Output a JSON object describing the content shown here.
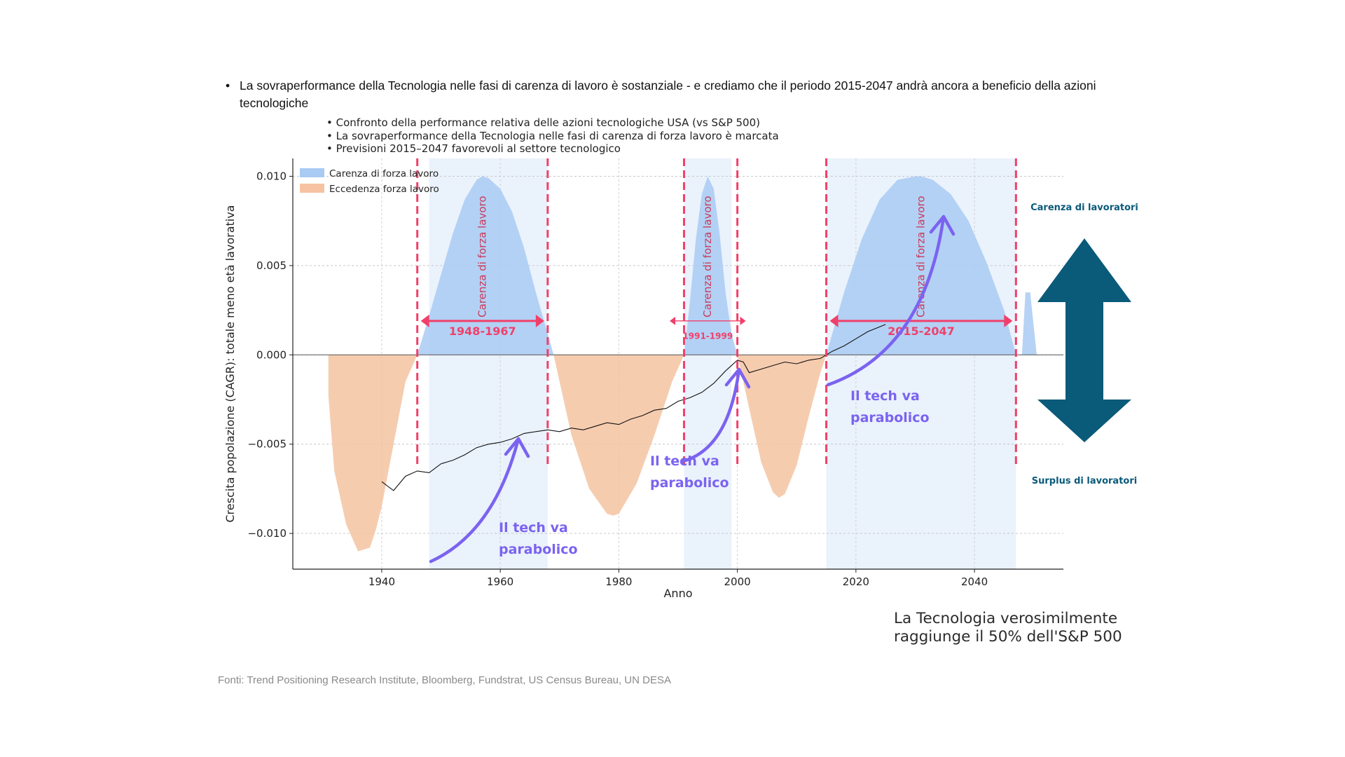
{
  "header": {
    "bullet_text": "La sovraperformance della Tecnologia nelle fasi di carenza di lavoro è sostanziale - e crediamo che il periodo 2015-2047 andrà ancora a beneficio della azioni tecnologiche",
    "sub_bullets": [
      "Confronto della performance relativa delle azioni tecnologiche USA (vs S&P 500)",
      "La sovraperformance della Tecnologia nelle fasi di carenza di forza lavoro è marcata",
      "Previsioni 2015–2047 favorevoli al settore tecnologico"
    ]
  },
  "side": {
    "top_label": "Carenza di lavoratori",
    "bottom_label": "Surplus di lavoratori",
    "arrow_color": "#0a5a7a"
  },
  "takeaway": "La Tecnologia verosimilmente raggiunge il 50% dell'S&P 500",
  "sources": "Fonti: Trend Positioning Research Institute, Bloomberg, Fundstrat, US Census Bureau, UN DESA",
  "colors": {
    "shortage_fill": "#a9cbf3",
    "surplus_fill": "#f5c3a1",
    "band_fill": "#eaf2fc",
    "marker": "#f0406a",
    "annotation_arrow": "#7b63f0",
    "tech_line": "#111111"
  },
  "chart_data": {
    "type": "area",
    "xlabel": "Anno",
    "ylabel": "Crescita popolazione (CAGR): totale meno età lavorativa",
    "xlim": [
      1925,
      2055
    ],
    "ylim": [
      -0.012,
      0.011
    ],
    "x_ticks": [
      1940,
      1960,
      1980,
      2000,
      2020,
      2040
    ],
    "y_ticks": [
      0.01,
      0.005,
      0.0,
      -0.005,
      -0.01
    ],
    "y_tick_labels": [
      "0.010",
      "0.005",
      "0.000",
      "−0.005",
      "−0.010"
    ],
    "grid": true,
    "legend": {
      "placement": "top-left",
      "entries": [
        {
          "label": "Carenza di forza lavoro",
          "color": "#a9cbf3"
        },
        {
          "label": "Eccedenza forza lavoro",
          "color": "#f5c3a1"
        }
      ]
    },
    "series": [
      {
        "name": "Carenza di forza lavoro",
        "kind": "positive-area",
        "x": [
          1946,
          1948,
          1950,
          1952,
          1954,
          1956,
          1957,
          1958,
          1960,
          1962,
          1964,
          1966,
          1968,
          1969
        ],
        "y": [
          0,
          0.0022,
          0.0045,
          0.0068,
          0.0087,
          0.0098,
          0.01,
          0.0099,
          0.0093,
          0.008,
          0.006,
          0.0035,
          0.0012,
          0
        ]
      },
      {
        "name": "",
        "kind": "positive-area",
        "x": [
          1991,
          1992,
          1993,
          1994,
          1995,
          1996,
          1997,
          1998,
          1999,
          2000
        ],
        "y": [
          0,
          0.003,
          0.0065,
          0.009,
          0.01,
          0.0093,
          0.0068,
          0.0035,
          0.0012,
          0
        ]
      },
      {
        "name": "",
        "kind": "positive-area",
        "x": [
          2015,
          2018,
          2021,
          2024,
          2027,
          2030,
          2031,
          2033,
          2036,
          2039,
          2042,
          2045,
          2047
        ],
        "y": [
          0,
          0.0035,
          0.0065,
          0.0087,
          0.0098,
          0.01,
          0.01,
          0.0098,
          0.009,
          0.0075,
          0.0052,
          0.0025,
          0
        ]
      },
      {
        "name": "",
        "kind": "positive-area",
        "x": [
          2048,
          2048.6,
          2049.4,
          2050.5
        ],
        "y": [
          0,
          0.0035,
          0.0035,
          0
        ]
      },
      {
        "name": "Eccedenza forza lavoro",
        "kind": "negative-area",
        "x": [
          1931,
          1932,
          1934,
          1936,
          1938,
          1939,
          1940,
          1942,
          1944,
          1946
        ],
        "y": [
          -0.0023,
          -0.0065,
          -0.0095,
          -0.011,
          -0.0108,
          -0.0098,
          -0.0085,
          -0.005,
          -0.0015,
          0
        ]
      },
      {
        "name": "",
        "kind": "negative-area",
        "x": [
          1969,
          1972,
          1975,
          1978,
          1979,
          1980,
          1983,
          1986,
          1989,
          1991
        ],
        "y": [
          0,
          -0.0045,
          -0.0075,
          -0.0089,
          -0.009,
          -0.0089,
          -0.0072,
          -0.0045,
          -0.0015,
          0
        ]
      },
      {
        "name": "",
        "kind": "negative-area",
        "x": [
          2000,
          2002,
          2004,
          2006,
          2007,
          2008,
          2010,
          2012,
          2014,
          2015
        ],
        "y": [
          0,
          -0.003,
          -0.006,
          -0.0077,
          -0.008,
          -0.0078,
          -0.0062,
          -0.0035,
          -0.001,
          0
        ]
      },
      {
        "name": "",
        "kind": "tech-line",
        "x": [
          1940,
          1942,
          1944,
          1946,
          1948,
          1950,
          1952,
          1954,
          1956,
          1958,
          1960,
          1962,
          1964,
          1966,
          1968,
          1970,
          1972,
          1974,
          1976,
          1978,
          1980,
          1982,
          1984,
          1986,
          1988,
          1990,
          1992,
          1994,
          1996,
          1998,
          2000,
          2001,
          2002,
          2004,
          2006,
          2008,
          2010,
          2012,
          2014,
          2016,
          2018,
          2020,
          2022,
          2025
        ],
        "y": [
          -0.0071,
          -0.0076,
          -0.0068,
          -0.0065,
          -0.0066,
          -0.0061,
          -0.0059,
          -0.0056,
          -0.0052,
          -0.005,
          -0.0049,
          -0.0047,
          -0.0044,
          -0.0043,
          -0.0042,
          -0.0043,
          -0.0041,
          -0.0042,
          -0.004,
          -0.0038,
          -0.0039,
          -0.0036,
          -0.0034,
          -0.0031,
          -0.003,
          -0.0026,
          -0.0024,
          -0.0021,
          -0.0016,
          -0.0009,
          -0.0003,
          -0.0004,
          -0.001,
          -0.0008,
          -0.0006,
          -0.0004,
          -0.0005,
          -0.0003,
          -0.0002,
          0.0002,
          0.0005,
          0.0009,
          0.0013,
          0.0017
        ]
      }
    ],
    "highlight_bands": [
      [
        1948,
        1968
      ],
      [
        1991,
        1999
      ],
      [
        2015,
        2047
      ]
    ],
    "markers": [
      1946,
      1968,
      1991,
      2000,
      2015,
      2047
    ],
    "shortage_labels": [
      {
        "x": 1957,
        "text": "Carenza di forza lavoro"
      },
      {
        "x": 1995,
        "text": "Carenza di forza lavoro"
      },
      {
        "x": 2031,
        "text": "Carenza di forza lavoro"
      }
    ],
    "periods": [
      {
        "from": 1946,
        "to": 1968,
        "label": "1948-1967"
      },
      {
        "from": 1988,
        "to": 2002,
        "label": "1991-1999"
      },
      {
        "from": 2015,
        "to": 2047,
        "label": "2015-2047"
      }
    ],
    "annotations": [
      {
        "line1": "Il tech va",
        "line2": "parabolico",
        "year": 1963
      },
      {
        "line1": "Il tech va",
        "line2": "parabolico",
        "year": 2001
      },
      {
        "line1": "Il tech va",
        "line2": "parabolico",
        "year": 2036
      }
    ]
  }
}
